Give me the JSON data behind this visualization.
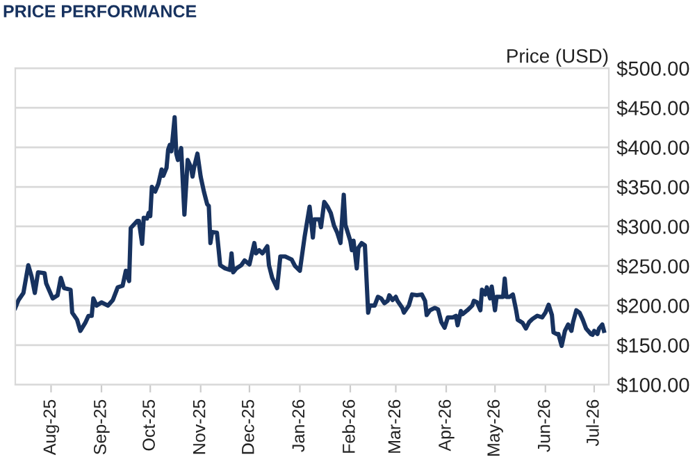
{
  "chart_data": {
    "type": "line",
    "title": "PRICE PERFORMANCE",
    "ylabel": "Price (USD)",
    "grid": "y",
    "legend": false,
    "marker": "none",
    "line_style": "solid",
    "xlim": [
      "2025-07-10",
      "2026-07-10"
    ],
    "ylim": [
      100,
      500
    ],
    "xticks": [
      {
        "value": "2025-08-01",
        "label": "Aug-25"
      },
      {
        "value": "2025-09-01",
        "label": "Sep-25"
      },
      {
        "value": "2025-10-01",
        "label": "Oct-25"
      },
      {
        "value": "2025-11-01",
        "label": "Nov-25"
      },
      {
        "value": "2025-12-01",
        "label": "Dec-25"
      },
      {
        "value": "2026-01-01",
        "label": "Jan-26"
      },
      {
        "value": "2026-02-01",
        "label": "Feb-26"
      },
      {
        "value": "2026-03-01",
        "label": "Mar-26"
      },
      {
        "value": "2026-04-01",
        "label": "Apr-26"
      },
      {
        "value": "2026-05-01",
        "label": "May-26"
      },
      {
        "value": "2026-06-01",
        "label": "Jun-26"
      },
      {
        "value": "2026-07-01",
        "label": "Jul-26"
      }
    ],
    "yticks": [
      {
        "value": 100,
        "label": "$100.00"
      },
      {
        "value": 150,
        "label": "$150.00"
      },
      {
        "value": 200,
        "label": "$200.00"
      },
      {
        "value": 250,
        "label": "$250.00"
      },
      {
        "value": 300,
        "label": "$300.00"
      },
      {
        "value": 350,
        "label": "$350.00"
      },
      {
        "value": 400,
        "label": "$400.00"
      },
      {
        "value": 450,
        "label": "$450.00"
      },
      {
        "value": 500,
        "label": "$500.00"
      }
    ],
    "series": [
      {
        "color": "#17325f",
        "x": [
          "2025-07-10",
          "2025-07-12",
          "2025-07-15",
          "2025-07-18",
          "2025-07-20",
          "2025-07-22",
          "2025-07-24",
          "2025-07-28",
          "2025-07-29",
          "2025-08-02",
          "2025-08-05",
          "2025-08-07",
          "2025-08-09",
          "2025-08-13",
          "2025-08-14",
          "2025-08-17",
          "2025-08-19",
          "2025-08-22",
          "2025-08-24",
          "2025-08-26",
          "2025-08-27",
          "2025-08-29",
          "2025-09-01",
          "2025-09-05",
          "2025-09-08",
          "2025-09-11",
          "2025-09-14",
          "2025-09-16",
          "2025-09-18",
          "2025-09-19",
          "2025-09-23",
          "2025-09-24",
          "2025-09-26",
          "2025-09-27",
          "2025-09-29",
          "2025-09-30",
          "2025-10-01",
          "2025-10-02",
          "2025-10-04",
          "2025-10-06",
          "2025-10-08",
          "2025-10-09",
          "2025-10-11",
          "2025-10-12",
          "2025-10-13",
          "2025-10-14",
          "2025-10-16",
          "2025-10-17",
          "2025-10-18",
          "2025-10-20",
          "2025-10-22",
          "2025-10-24",
          "2025-10-26",
          "2025-10-27",
          "2025-10-28",
          "2025-10-30",
          "2025-11-01",
          "2025-11-03",
          "2025-11-05",
          "2025-11-06",
          "2025-11-07",
          "2025-11-08",
          "2025-11-11",
          "2025-11-12",
          "2025-11-13",
          "2025-11-16",
          "2025-11-19",
          "2025-11-20",
          "2025-11-21",
          "2025-11-23",
          "2025-11-26",
          "2025-11-28",
          "2025-12-01",
          "2025-12-04",
          "2025-12-05",
          "2025-12-07",
          "2025-12-09",
          "2025-12-12",
          "2025-12-13",
          "2025-12-15",
          "2025-12-18",
          "2025-12-20",
          "2025-12-23",
          "2025-12-27",
          "2025-12-29",
          "2026-01-01",
          "2026-01-04",
          "2026-01-07",
          "2026-01-09",
          "2026-01-10",
          "2026-01-13",
          "2026-01-14",
          "2026-01-16",
          "2026-01-18",
          "2026-01-20",
          "2026-01-22",
          "2026-01-24",
          "2026-01-26",
          "2026-01-28",
          "2026-01-29",
          "2026-02-01",
          "2026-02-02",
          "2026-02-03",
          "2026-02-05",
          "2026-02-06",
          "2026-02-08",
          "2026-02-10",
          "2026-02-12",
          "2026-02-13",
          "2026-02-16",
          "2026-02-18",
          "2026-02-20",
          "2026-02-22",
          "2026-02-24",
          "2026-02-25",
          "2026-02-27",
          "2026-03-01",
          "2026-03-02",
          "2026-03-05",
          "2026-03-06",
          "2026-03-09",
          "2026-03-11",
          "2026-03-14",
          "2026-03-17",
          "2026-03-19",
          "2026-03-20",
          "2026-03-22",
          "2026-03-25",
          "2026-03-27",
          "2026-03-29",
          "2026-03-31",
          "2026-04-02",
          "2026-04-05",
          "2026-04-07",
          "2026-04-08",
          "2026-04-10",
          "2026-04-11",
          "2026-04-14",
          "2026-04-17",
          "2026-04-18",
          "2026-04-20",
          "2026-04-22",
          "2026-04-23",
          "2026-04-25",
          "2026-04-26",
          "2026-04-28",
          "2026-04-29",
          "2026-05-01",
          "2026-05-02",
          "2026-05-05",
          "2026-05-06",
          "2026-05-07",
          "2026-05-08",
          "2026-05-10",
          "2026-05-12",
          "2026-05-14",
          "2026-05-15",
          "2026-05-18",
          "2026-05-20",
          "2026-05-22",
          "2026-05-24",
          "2026-05-27",
          "2026-05-30",
          "2026-06-01",
          "2026-06-03",
          "2026-06-05",
          "2026-06-06",
          "2026-06-08",
          "2026-06-09",
          "2026-06-11",
          "2026-06-13",
          "2026-06-15",
          "2026-06-17",
          "2026-06-18",
          "2026-06-20",
          "2026-06-22",
          "2026-06-24",
          "2026-06-26",
          "2026-06-29",
          "2026-06-30",
          "2026-07-01",
          "2026-07-03",
          "2026-07-04",
          "2026-07-06",
          "2026-07-07"
        ],
        "values": [
          197,
          207,
          216,
          251,
          237,
          216,
          242,
          241,
          228,
          209,
          213,
          235,
          222,
          220,
          191,
          182,
          168,
          178,
          187,
          187,
          209,
          200,
          204,
          200,
          207,
          223,
          225,
          244,
          231,
          298,
          307,
          307,
          278,
          311,
          310,
          317,
          313,
          350,
          344,
          354,
          372,
          364,
          374,
          397,
          403,
          395,
          438,
          392,
          384,
          399,
          315,
          384,
          375,
          363,
          375,
          392,
          363,
          344,
          328,
          326,
          279,
          293,
          292,
          272,
          251,
          247,
          245,
          266,
          242,
          247,
          251,
          257,
          252,
          279,
          266,
          270,
          266,
          275,
          251,
          235,
          222,
          262,
          262,
          258,
          250,
          244,
          288,
          325,
          286,
          309,
          309,
          299,
          331,
          325,
          317,
          301,
          292,
          279,
          340,
          302,
          282,
          270,
          282,
          247,
          273,
          279,
          276,
          191,
          200,
          200,
          211,
          209,
          203,
          206,
          213,
          207,
          211,
          206,
          197,
          191,
          200,
          214,
          213,
          214,
          206,
          188,
          194,
          197,
          195,
          179,
          172,
          185,
          185,
          187,
          175,
          193,
          189,
          194,
          200,
          206,
          204,
          194,
          220,
          214,
          223,
          209,
          224,
          194,
          211,
          211,
          211,
          234,
          211,
          211,
          214,
          194,
          182,
          178,
          171,
          179,
          183,
          187,
          185,
          191,
          201,
          188,
          166,
          164,
          164,
          149,
          168,
          176,
          168,
          179,
          194,
          191,
          182,
          171,
          164,
          163,
          168,
          164,
          171,
          176,
          168
        ]
      }
    ]
  }
}
